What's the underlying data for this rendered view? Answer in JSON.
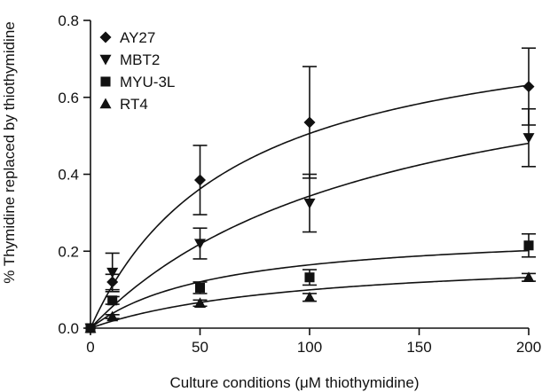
{
  "chart_data": {
    "type": "scatter",
    "xlabel": "Culture conditions (μM thiothymidine)",
    "ylabel": "% Thymidine replaced by thiothymidine",
    "xlim": [
      0,
      200
    ],
    "ylim": [
      0,
      0.8
    ],
    "xticks": [
      "0",
      "50",
      "100",
      "150",
      "200"
    ],
    "yticks": [
      "0.0",
      "0.2",
      "0.4",
      "0.6",
      "0.8"
    ],
    "grid": false,
    "legend_position": "top-left",
    "fitted_curves": true,
    "series": [
      {
        "name": "AY27",
        "marker": "diamond",
        "x": [
          0,
          10,
          50,
          100,
          200
        ],
        "y": [
          0.0,
          0.12,
          0.385,
          0.535,
          0.628
        ],
        "err": [
          0,
          0.02,
          0.09,
          0.145,
          0.1
        ],
        "curve_vmax": 0.84,
        "curve_k": 66
      },
      {
        "name": "MBT2",
        "marker": "triangle-down",
        "x": [
          0,
          10,
          50,
          100,
          200
        ],
        "y": [
          0.0,
          0.145,
          0.22,
          0.325,
          0.495
        ],
        "err": [
          0,
          0.05,
          0.04,
          0.075,
          0.075
        ],
        "curve_vmax": 0.8,
        "curve_k": 133
      },
      {
        "name": "MYU-3L",
        "marker": "square",
        "x": [
          0,
          10,
          50,
          100,
          200
        ],
        "y": [
          0.0,
          0.072,
          0.105,
          0.132,
          0.215
        ],
        "err": [
          0,
          0.01,
          0.015,
          0.02,
          0.03
        ],
        "curve_vmax": 0.26,
        "curve_k": 58
      },
      {
        "name": "RT4",
        "marker": "triangle-up",
        "x": [
          0,
          10,
          50,
          100,
          200
        ],
        "y": [
          0.0,
          0.03,
          0.065,
          0.08,
          0.132
        ],
        "err": [
          0,
          0.005,
          0.008,
          0.01,
          0.01
        ],
        "curve_vmax": 0.195,
        "curve_k": 96
      }
    ]
  }
}
